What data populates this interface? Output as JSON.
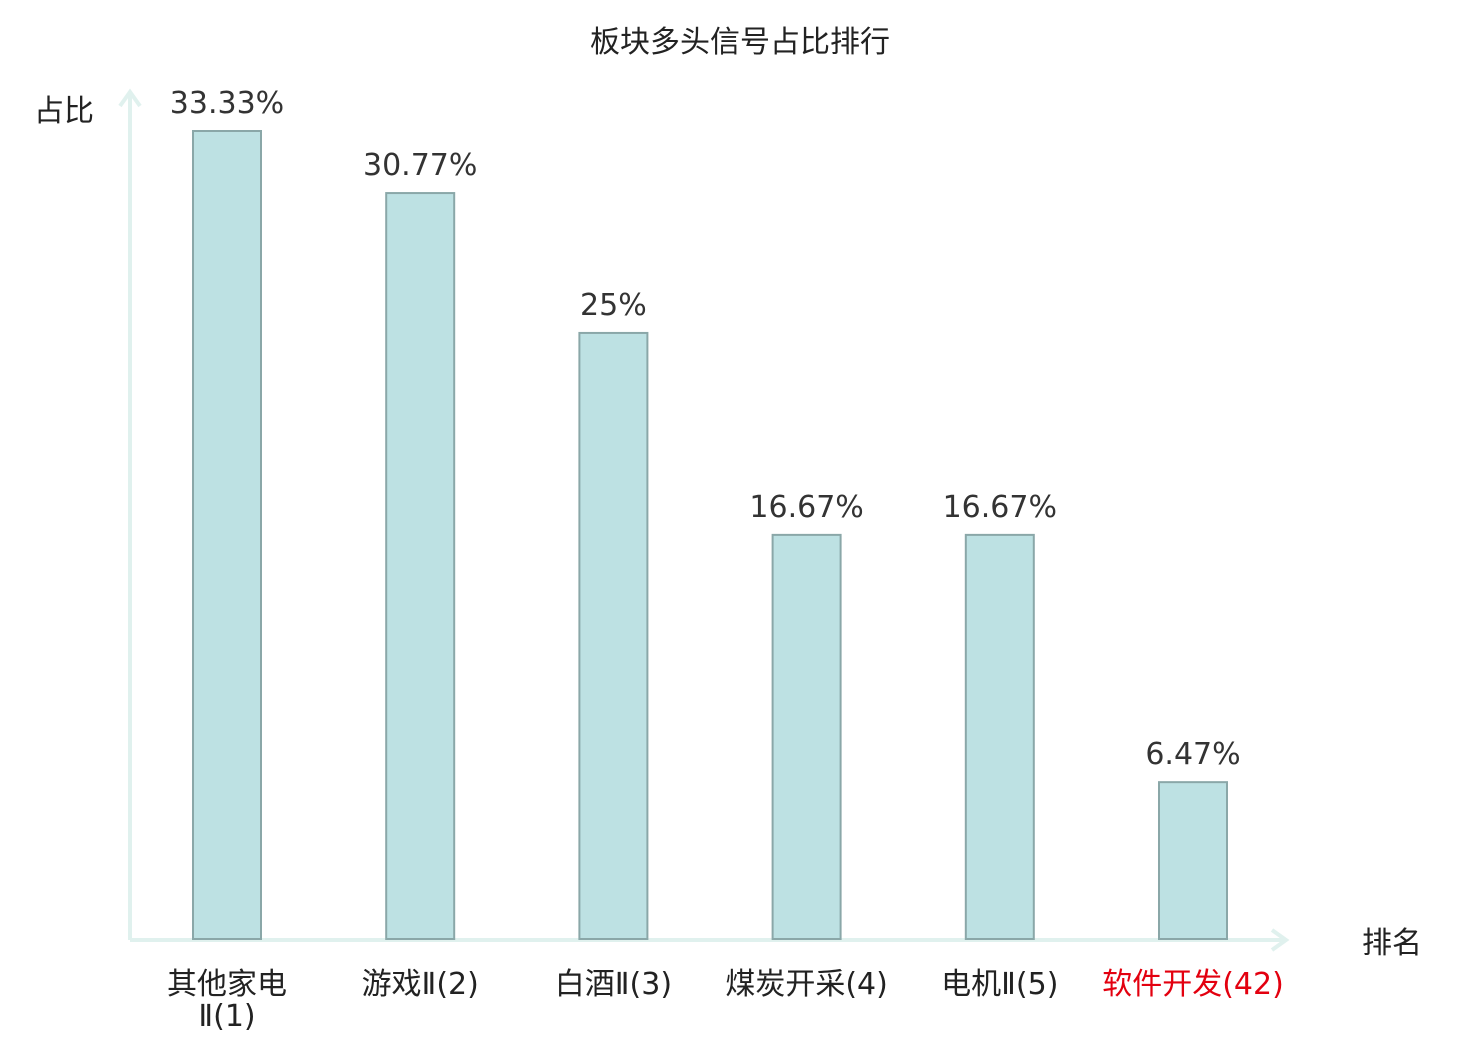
{
  "chart_data": {
    "type": "bar",
    "title": "板块多头信号占比排行",
    "ylabel": "占比",
    "xlabel": "排名",
    "categories": [
      {
        "name": "其他家电Ⅱ",
        "rank": "(1)",
        "value": 33.33,
        "label": "33.33%",
        "highlight": false
      },
      {
        "name": "游戏Ⅱ",
        "rank": "(2)",
        "value": 30.77,
        "label": "30.77%",
        "highlight": false
      },
      {
        "name": "白酒Ⅱ",
        "rank": "(3)",
        "value": 25,
        "label": "25%",
        "highlight": false
      },
      {
        "name": "煤炭开采",
        "rank": "(4)",
        "value": 16.67,
        "label": "16.67%",
        "highlight": false
      },
      {
        "name": "电机Ⅱ",
        "rank": "(5)",
        "value": 16.67,
        "label": "16.67%",
        "highlight": false
      },
      {
        "name": "软件开发",
        "rank": "(42)",
        "value": 6.47,
        "label": "6.47%",
        "highlight": true
      }
    ],
    "ylim": [
      0,
      33.33
    ],
    "grid": false,
    "legend": "none",
    "colors": {
      "bar_fill": "#bde1e3",
      "bar_stroke": "#8aa7a8",
      "axis": "#e0f1ee",
      "highlight_label": "#e3000f"
    }
  }
}
